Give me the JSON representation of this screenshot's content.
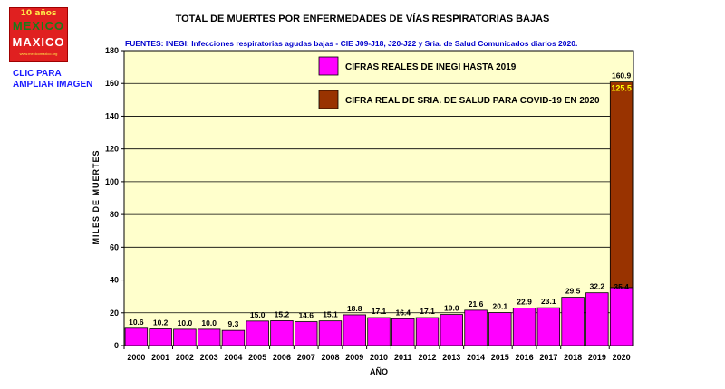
{
  "logo": {
    "line1": "10 años",
    "line2": "MEXICO",
    "line3": "MAXICO",
    "line4": "www.mexicomaxico.org"
  },
  "sidebar": {
    "link_line1": "CLIC PARA",
    "link_line2": "AMPLIAR IMAGEN"
  },
  "colors": {
    "plot_bg": "#ffffcc",
    "inegi": "#ff00ff",
    "covid": "#993300",
    "label_yellow": "#ffff00"
  },
  "chart_data": {
    "type": "bar",
    "title": "TOTAL DE MUERTES POR ENFERMEDADES DE VÍAS RESPIRATORIAS BAJAS",
    "subtitle": "FUENTES: INEGI: Infecciones respiratorias agudas bajas - CIE J09-J18, J20-J22  y  Sria. de Salud Comunicados diarios 2020.",
    "xlabel": "AÑO",
    "ylabel": "MILES DE MUERTES",
    "ylim": [
      0,
      180
    ],
    "yticks": [
      0,
      20,
      40,
      60,
      80,
      100,
      120,
      140,
      160,
      180
    ],
    "grid": true,
    "legend_position": "top-right",
    "categories": [
      "2000",
      "2001",
      "2002",
      "2003",
      "2004",
      "2005",
      "2006",
      "2007",
      "2008",
      "2009",
      "2010",
      "2011",
      "2012",
      "2013",
      "2014",
      "2015",
      "2016",
      "2017",
      "2018",
      "2019",
      "2020"
    ],
    "series": [
      {
        "name": "CIFRAS REALES DE INEGI HASTA 2019",
        "values": [
          10.6,
          10.2,
          10.0,
          10.0,
          9.3,
          15.0,
          15.2,
          14.6,
          15.1,
          18.8,
          17.1,
          16.4,
          17.1,
          19.0,
          21.6,
          20.1,
          22.9,
          23.1,
          29.5,
          32.2,
          35.4
        ],
        "labels": [
          "10.6",
          "10.2",
          "10.0",
          "10.0",
          "9.3",
          "15.0",
          "15.2",
          "14.6",
          "15.1",
          "18.8",
          "17.1",
          "16.4",
          "17.1",
          "19.0",
          "21.6",
          "20.1",
          "22.9",
          "23.1",
          "29.5",
          "32.2",
          "35.4"
        ]
      },
      {
        "name": "CIFRA REAL DE SRIA. DE SALUD PARA COVID-19 EN 2020",
        "values": [
          0,
          0,
          0,
          0,
          0,
          0,
          0,
          0,
          0,
          0,
          0,
          0,
          0,
          0,
          0,
          0,
          0,
          0,
          0,
          0,
          125.5
        ],
        "labels": [
          "",
          "",
          "",
          "",
          "",
          "",
          "",
          "",
          "",
          "",
          "",
          "",
          "",
          "",
          "",
          "",
          "",
          "",
          "",
          "",
          "125.5"
        ]
      }
    ],
    "totals": [
      {
        "category": "2020",
        "label": "160.9"
      }
    ]
  }
}
